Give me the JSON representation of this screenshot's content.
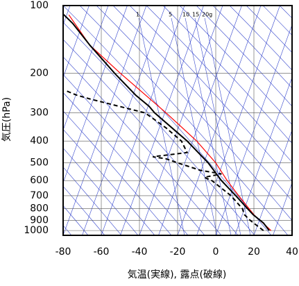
{
  "chart_data": {
    "type": "line",
    "xlabel": "気温(実線), 露点(破線)",
    "ylabel": "気圧(hPa)",
    "xlim": [
      -80,
      40
    ],
    "xticks": [
      -80,
      -60,
      -40,
      -20,
      0,
      20,
      40
    ],
    "ylim": [
      1050,
      100
    ],
    "yticks": [
      100,
      200,
      300,
      400,
      500,
      600,
      700,
      800,
      900,
      1000
    ],
    "log_y": true,
    "grid": true,
    "annotations": [
      "1",
      "5",
      "10",
      "15",
      "20g"
    ],
    "series": [
      {
        "color": "#ff0000",
        "dash": false,
        "x": [
          29,
          20,
          12,
          6,
          0,
          -10,
          -26,
          -50,
          -66,
          -77
        ],
        "values": [
          1000,
          850,
          700,
          600,
          500,
          400,
          300,
          200,
          150,
          110
        ]
      },
      {
        "color": "#000000",
        "dash": false,
        "x": [
          28,
          25,
          19.6,
          16.7,
          10.5,
          3,
          -4,
          -15,
          -32,
          -35,
          -42,
          -53,
          -66,
          -75,
          -82
        ],
        "values": [
          1000,
          925,
          850,
          800,
          700,
          600,
          500,
          400,
          300,
          280,
          250,
          200,
          150,
          120,
          105
        ]
      },
      {
        "color": "#000000",
        "dash": true,
        "x": [
          25,
          18,
          15,
          14,
          8,
          -2,
          -6,
          3,
          -8,
          -20,
          -26,
          -33,
          -15,
          -18,
          -26,
          -37,
          -66,
          -73,
          -78
        ],
        "values": [
          1000,
          900,
          850,
          800,
          700,
          600,
          580,
          560,
          540,
          500,
          480,
          470,
          450,
          400,
          350,
          300,
          260,
          250,
          240
        ]
      }
    ]
  }
}
